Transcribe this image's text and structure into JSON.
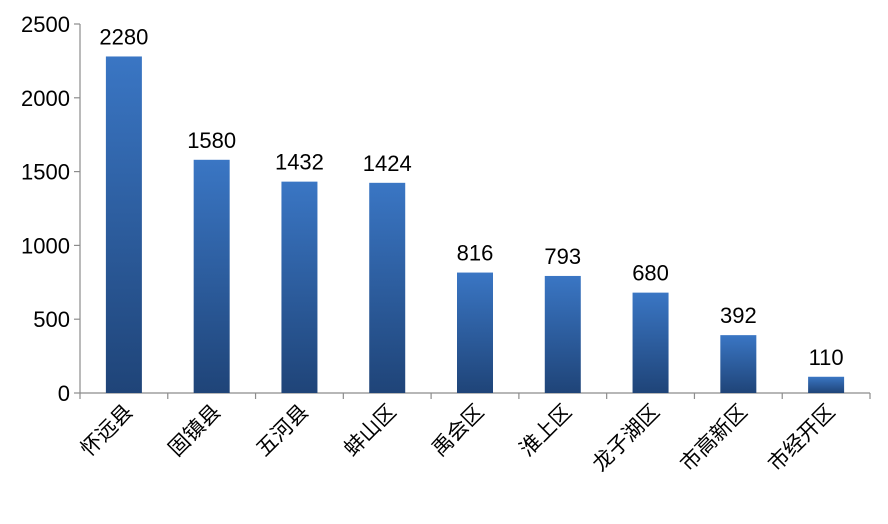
{
  "chart_data": {
    "type": "bar",
    "categories": [
      "怀远县",
      "固镇县",
      "五河县",
      "蚌山区",
      "禹会区",
      "淮上区",
      "龙子湖区",
      "市高新区",
      "市经开区"
    ],
    "values": [
      2280,
      1580,
      1432,
      1424,
      816,
      793,
      680,
      392,
      110
    ],
    "y_ticks": [
      "0",
      "500",
      "1000",
      "1500",
      "2000",
      "2500"
    ],
    "ylim": [
      0,
      2500
    ],
    "title": "",
    "xlabel": "",
    "ylabel": "",
    "grid": false,
    "legend": "none",
    "bar_color_top": "#3a76c4",
    "bar_color_bottom": "#1f4478",
    "show_data_labels": true
  }
}
